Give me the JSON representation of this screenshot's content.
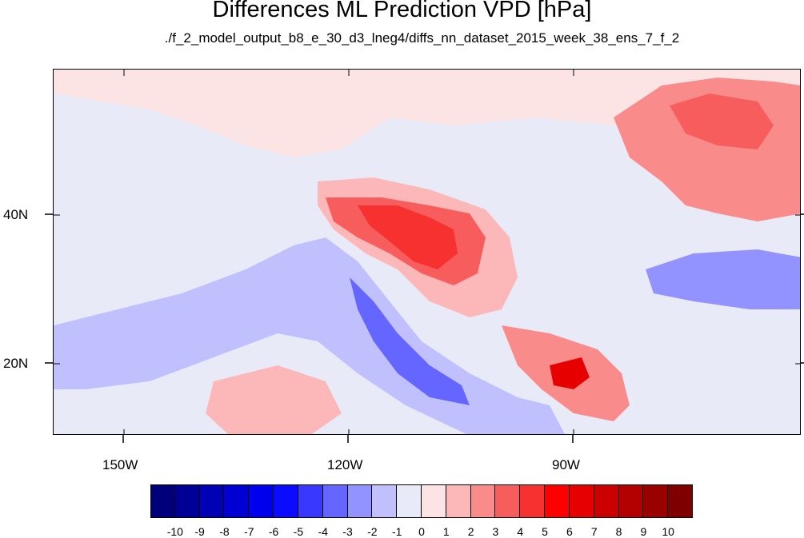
{
  "title": "Differences ML Prediction VPD [hPa]",
  "subtitle": "./f_2_model_output_b8_e_30_d3_lneg4/diffs_nn_dataset_2015_week_38_ens_7_f_2",
  "axes": {
    "lon_labels": [
      "150W",
      "120W",
      "90W"
    ],
    "lat_labels": [
      "40N",
      "20N"
    ]
  },
  "colorbar": {
    "labels": [
      "-10",
      "-9",
      "-8",
      "-7",
      "-6",
      "-5",
      "-4",
      "-3",
      "-2",
      "-1",
      "0",
      "1",
      "2",
      "3",
      "4",
      "5",
      "6",
      "7",
      "8",
      "9",
      "10"
    ],
    "colors": [
      "#00007a",
      "#000097",
      "#0000b5",
      "#0000d2",
      "#0000ef",
      "#0b0bff",
      "#3838ff",
      "#6565ff",
      "#9393ff",
      "#c0c0ff",
      "#e9eaf8",
      "#fde4e4",
      "#fcb8b8",
      "#fa8b8b",
      "#f85d5d",
      "#f73030",
      "#ff0000",
      "#e60000",
      "#cc0000",
      "#b30000",
      "#990000",
      "#800000"
    ]
  },
  "field_colors": {
    "ocean_neutral": "#e9eaf8",
    "light_pink": "#fde4e4",
    "pink": "#fcb8b8",
    "red_med": "#fa8b8b",
    "red": "#f85d5d",
    "red_strong": "#f73030",
    "red_dark": "#e60000",
    "blue_light": "#c0c0ff",
    "blue_med": "#9393ff",
    "blue": "#6565ff",
    "blue_strong": "#3838ff"
  }
}
